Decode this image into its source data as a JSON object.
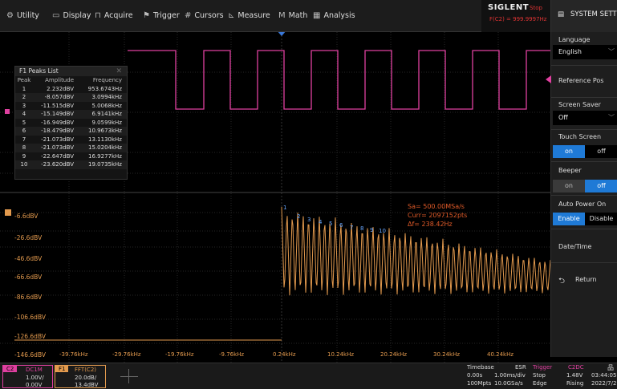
{
  "menu": {
    "items": [
      {
        "label": "Utility",
        "icon": "utility-icon"
      },
      {
        "label": "Display",
        "icon": "display-icon"
      },
      {
        "label": "Acquire",
        "icon": "acquire-icon"
      },
      {
        "label": "Trigger",
        "icon": "trigger-icon"
      },
      {
        "label": "Cursors",
        "icon": "cursors-icon"
      },
      {
        "label": "Measure",
        "icon": "measure-icon"
      },
      {
        "label": "Math",
        "icon": "math-icon"
      },
      {
        "label": "Analysis",
        "icon": "analysis-icon"
      }
    ]
  },
  "brand": {
    "logo": "SIGLENT",
    "status": "Stop",
    "measurement": "F(C2) = 999.9997Hz"
  },
  "system_settings": {
    "title": "SYSTEM SETTIN"
  },
  "right_panel": {
    "language": {
      "label": "Language",
      "value": "English"
    },
    "reference_pos": {
      "label": "Reference Pos"
    },
    "screen_saver": {
      "label": "Screen Saver",
      "value": "Off"
    },
    "touch_screen": {
      "label": "Touch Screen",
      "on": "on",
      "off": "off"
    },
    "beeper": {
      "label": "Beeper",
      "on": "on",
      "off": "off"
    },
    "auto_power_on": {
      "label": "Auto Power On",
      "enable": "Enable",
      "disable": "Disable"
    },
    "date_time": {
      "label": "Date/Time"
    },
    "return": {
      "label": "Return"
    }
  },
  "peaks_list": {
    "title": "F1 Peaks List",
    "headers": [
      "Peak",
      "Amplitude",
      "Frequency"
    ],
    "rows": [
      [
        "1",
        "2.232dBV",
        "953.6743Hz"
      ],
      [
        "2",
        "-8.057dBV",
        "3.0994kHz"
      ],
      [
        "3",
        "-11.515dBV",
        "5.0068kHz"
      ],
      [
        "4",
        "-15.149dBV",
        "6.9141kHz"
      ],
      [
        "5",
        "-16.949dBV",
        "9.0599kHz"
      ],
      [
        "6",
        "-18.479dBV",
        "10.9673kHz"
      ],
      [
        "7",
        "-21.073dBV",
        "13.1130kHz"
      ],
      [
        "8",
        "-21.073dBV",
        "15.0204kHz"
      ],
      [
        "9",
        "-22.647dBV",
        "16.9277kHz"
      ],
      [
        "10",
        "-23.620dBV",
        "19.0735kHz"
      ]
    ]
  },
  "fft_info": {
    "sa": "Sa=  500.00MSa/s",
    "curr": "Curr= 2097152pts",
    "df": "Δf=  238.42Hz"
  },
  "fft_y_labels": [
    "-6.6dBV",
    "-26.6dBV",
    "-46.6dBV",
    "-66.6dBV",
    "-86.6dBV",
    "-106.6dBV",
    "-126.6dBV",
    "-146.6dBV"
  ],
  "fft_x_labels": [
    "-39.76kHz",
    "-29.76kHz",
    "-19.76kHz",
    "-9.76kHz",
    "0.24kHz",
    "10.24kHz",
    "20.24kHz",
    "30.24kHz",
    "40.24kHz"
  ],
  "peak_markers": [
    "1",
    "2",
    "3",
    "4",
    "5",
    "6",
    "7",
    "8",
    "9",
    "10"
  ],
  "bottom": {
    "c2": {
      "name": "C2",
      "coupling": "DC1M",
      "scale": "1.00V/",
      "offset": "0.00V"
    },
    "f1": {
      "name": "F1",
      "source": "FFT(C2)",
      "scale": "20.0dB/",
      "offset": "13.4dBV"
    },
    "timebase": {
      "title": "Timebase",
      "mode": "ESR",
      "delay": "0.00s",
      "tdiv": "1.00ms/div",
      "points": "100Mpts",
      "rate": "10.0GSa/s"
    },
    "trigger": {
      "title": "Trigger",
      "state": "Stop",
      "type": "Edge",
      "source": "C2DC",
      "level": "1.48V",
      "slope": "Rising"
    },
    "clock": {
      "time": "03:44:05",
      "date": "2022/7/2"
    }
  },
  "colors": {
    "c2": "#e040a0",
    "fft": "#e39a4e",
    "accent": "#1f7ad6",
    "peak": "#6aa8ff"
  }
}
